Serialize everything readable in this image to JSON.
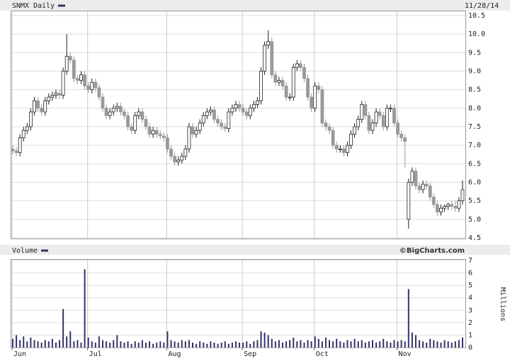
{
  "chart_data": [
    {
      "type": "candlestick",
      "title": "SNMX Daily",
      "date": "11/28/14",
      "up_color": "#ffffff",
      "down_color": "#999999",
      "line_color": "#222222",
      "legend_color": "#333366",
      "open": [
        6.9,
        6.85,
        6.8,
        7.2,
        7.4,
        7.5,
        7.9,
        8.2,
        8.0,
        7.9,
        8.2,
        8.3,
        8.35,
        8.4,
        8.35,
        9.0,
        9.4,
        9.3,
        8.8,
        8.75,
        8.9,
        8.6,
        8.5,
        8.7,
        8.55,
        8.3,
        8.0,
        7.8,
        7.9,
        8.0,
        8.05,
        7.9,
        7.8,
        7.5,
        7.4,
        7.8,
        7.9,
        7.7,
        7.5,
        7.3,
        7.4,
        7.3,
        7.25,
        7.2,
        6.9,
        6.7,
        6.55,
        6.6,
        6.7,
        6.9,
        7.5,
        7.3,
        7.4,
        7.6,
        7.8,
        7.9,
        7.95,
        7.7,
        7.6,
        7.5,
        7.45,
        7.9,
        8.0,
        8.1,
        8.0,
        7.9,
        7.8,
        8.0,
        8.1,
        8.2,
        9.0,
        9.7,
        9.8,
        8.9,
        8.7,
        8.75,
        8.6,
        8.3,
        8.3,
        9.1,
        9.2,
        9.1,
        8.8,
        8.3,
        8.0,
        8.6,
        8.5,
        7.6,
        7.5,
        7.4,
        7.0,
        6.9,
        6.9,
        6.8,
        7.0,
        7.3,
        7.5,
        7.7,
        8.1,
        7.8,
        7.4,
        7.6,
        7.9,
        7.8,
        7.5,
        8.0,
        8.0,
        7.6,
        7.3,
        7.2,
        5.0,
        6.0,
        6.3,
        5.9,
        5.8,
        5.95,
        5.9,
        5.6,
        5.4,
        5.2,
        5.3,
        5.35,
        5.4,
        5.35,
        5.3,
        5.5
      ],
      "high": [
        7.0,
        6.95,
        7.3,
        7.5,
        7.6,
        8.0,
        8.3,
        8.3,
        8.1,
        8.3,
        8.4,
        8.45,
        8.5,
        8.5,
        9.1,
        10.0,
        9.5,
        9.4,
        8.9,
        9.0,
        9.0,
        8.7,
        8.8,
        8.8,
        8.65,
        8.4,
        8.1,
        8.0,
        8.1,
        8.15,
        8.15,
        8.0,
        7.9,
        7.6,
        7.9,
        8.0,
        8.0,
        7.8,
        7.6,
        7.5,
        7.5,
        7.4,
        7.35,
        7.3,
        7.0,
        6.8,
        6.7,
        6.8,
        7.0,
        7.6,
        7.6,
        7.5,
        7.7,
        7.9,
        8.0,
        8.05,
        8.05,
        7.8,
        7.7,
        7.6,
        8.0,
        8.1,
        8.2,
        8.2,
        8.1,
        8.0,
        8.1,
        8.2,
        8.3,
        9.1,
        9.8,
        10.1,
        9.9,
        9.0,
        8.85,
        8.85,
        8.7,
        8.4,
        9.2,
        9.3,
        9.3,
        9.2,
        8.9,
        8.4,
        8.7,
        8.7,
        8.6,
        7.7,
        7.6,
        7.5,
        7.1,
        7.0,
        7.0,
        7.1,
        7.4,
        7.6,
        7.8,
        8.2,
        8.2,
        7.9,
        7.7,
        8.0,
        8.0,
        7.9,
        8.1,
        8.1,
        8.1,
        7.7,
        7.4,
        7.3,
        6.1,
        6.4,
        6.4,
        6.0,
        6.05,
        6.05,
        6.0,
        5.7,
        5.5,
        5.4,
        5.4,
        5.45,
        5.5,
        5.5,
        5.6,
        6.05
      ],
      "low": [
        6.75,
        6.7,
        6.7,
        7.1,
        7.3,
        7.4,
        7.8,
        7.9,
        7.8,
        7.8,
        8.1,
        8.2,
        8.25,
        8.25,
        8.25,
        8.9,
        9.2,
        8.7,
        8.65,
        8.65,
        8.5,
        8.4,
        8.4,
        8.45,
        8.2,
        7.9,
        7.7,
        7.7,
        7.8,
        7.9,
        7.8,
        7.7,
        7.4,
        7.3,
        7.3,
        7.7,
        7.6,
        7.4,
        7.2,
        7.2,
        7.2,
        7.15,
        7.1,
        6.8,
        6.6,
        6.45,
        6.45,
        6.5,
        6.6,
        6.8,
        7.2,
        7.2,
        7.3,
        7.5,
        7.7,
        7.8,
        7.6,
        7.5,
        7.4,
        7.35,
        7.35,
        7.8,
        7.9,
        7.9,
        7.8,
        7.7,
        7.7,
        7.9,
        8.0,
        8.1,
        8.9,
        9.6,
        8.8,
        8.6,
        8.6,
        8.5,
        8.2,
        8.2,
        8.2,
        9.0,
        9.0,
        8.7,
        8.2,
        7.9,
        7.9,
        8.4,
        7.5,
        7.4,
        7.3,
        6.9,
        6.8,
        6.8,
        6.7,
        6.7,
        6.9,
        7.2,
        7.4,
        7.6,
        7.7,
        7.3,
        7.3,
        7.5,
        7.7,
        7.4,
        7.4,
        7.9,
        7.5,
        7.2,
        7.1,
        6.4,
        4.75,
        5.9,
        5.8,
        5.7,
        5.7,
        5.8,
        5.5,
        5.3,
        5.1,
        5.1,
        5.2,
        5.25,
        5.25,
        5.2,
        5.2,
        5.4
      ],
      "close": [
        6.85,
        6.8,
        7.2,
        7.4,
        7.5,
        7.9,
        8.2,
        8.0,
        7.9,
        8.2,
        8.3,
        8.35,
        8.4,
        8.35,
        9.0,
        9.4,
        9.3,
        8.8,
        8.75,
        8.9,
        8.6,
        8.5,
        8.7,
        8.55,
        8.3,
        8.0,
        7.8,
        7.9,
        8.0,
        8.05,
        7.9,
        7.8,
        7.5,
        7.4,
        7.8,
        7.9,
        7.7,
        7.5,
        7.3,
        7.4,
        7.3,
        7.25,
        7.2,
        6.9,
        6.7,
        6.55,
        6.6,
        6.7,
        6.9,
        7.5,
        7.3,
        7.4,
        7.6,
        7.8,
        7.9,
        7.95,
        7.7,
        7.6,
        7.5,
        7.45,
        7.9,
        8.0,
        8.1,
        8.0,
        7.9,
        7.8,
        8.0,
        8.1,
        8.2,
        9.0,
        9.7,
        9.8,
        8.9,
        8.7,
        8.75,
        8.6,
        8.3,
        8.3,
        9.1,
        9.2,
        9.1,
        8.8,
        8.3,
        8.0,
        8.6,
        8.5,
        7.6,
        7.5,
        7.4,
        7.0,
        6.9,
        6.9,
        6.8,
        7.0,
        7.3,
        7.5,
        7.7,
        8.1,
        7.8,
        7.4,
        7.6,
        7.9,
        7.8,
        7.5,
        8.0,
        8.0,
        7.6,
        7.3,
        7.2,
        7.1,
        6.0,
        6.3,
        5.9,
        5.8,
        5.95,
        5.9,
        5.6,
        5.4,
        5.2,
        5.3,
        5.35,
        5.4,
        5.35,
        5.3,
        5.5,
        5.8
      ],
      "ylim": [
        4.5,
        10.5
      ],
      "yticks": [
        4.5,
        {
          "value": 5,
          "label": "5.0"
        },
        5.5,
        {
          "value": 6,
          "label": "6.0"
        },
        6.5,
        {
          "value": 7,
          "label": "7.0"
        },
        7.5,
        {
          "value": 8,
          "label": "8.0"
        },
        8.5,
        {
          "value": 9,
          "label": "9.0"
        },
        9.5,
        {
          "value": 10,
          "label": "10.0"
        },
        10.5
      ],
      "grid": true
    },
    {
      "type": "bar",
      "title": "Volume",
      "source": "©BigCharts.com",
      "y_label": "Millions",
      "color": "#333366",
      "categories": [
        "Jun",
        null,
        null,
        null,
        null,
        null,
        null,
        null,
        null,
        null,
        null,
        null,
        null,
        null,
        null,
        null,
        null,
        null,
        null,
        null,
        null,
        "Jul",
        null,
        null,
        null,
        null,
        null,
        null,
        null,
        null,
        null,
        null,
        null,
        null,
        null,
        null,
        null,
        null,
        null,
        null,
        null,
        null,
        null,
        "Aug",
        null,
        null,
        null,
        null,
        null,
        null,
        null,
        null,
        null,
        null,
        null,
        null,
        null,
        null,
        null,
        null,
        null,
        null,
        null,
        null,
        "Sep",
        null,
        null,
        null,
        null,
        null,
        null,
        null,
        null,
        null,
        null,
        null,
        null,
        null,
        null,
        null,
        null,
        null,
        null,
        null,
        "Oct",
        null,
        null,
        null,
        null,
        null,
        null,
        null,
        null,
        null,
        null,
        null,
        null,
        null,
        null,
        null,
        null,
        null,
        null,
        null,
        null,
        null,
        null,
        "Nov",
        null,
        null,
        null,
        null,
        null,
        null,
        null,
        null,
        null,
        null,
        null,
        null,
        null,
        null,
        null,
        null,
        null,
        null
      ],
      "values": [
        0.7,
        1.0,
        0.6,
        0.9,
        0.5,
        0.8,
        0.6,
        0.5,
        0.4,
        0.6,
        0.5,
        0.7,
        0.4,
        0.6,
        3.1,
        0.9,
        1.3,
        0.5,
        0.6,
        0.4,
        6.3,
        0.8,
        0.5,
        0.4,
        0.9,
        0.6,
        0.5,
        0.4,
        0.6,
        1.0,
        0.5,
        0.4,
        0.5,
        0.3,
        0.5,
        0.4,
        0.6,
        0.4,
        0.5,
        0.3,
        0.4,
        0.5,
        0.4,
        1.3,
        0.6,
        0.5,
        0.4,
        0.6,
        0.5,
        0.6,
        0.4,
        0.3,
        0.5,
        0.4,
        0.3,
        0.5,
        0.4,
        0.3,
        0.4,
        0.5,
        0.3,
        0.4,
        0.5,
        0.4,
        0.4,
        0.5,
        0.3,
        0.5,
        0.6,
        1.3,
        1.2,
        1.0,
        0.7,
        0.5,
        0.6,
        0.4,
        0.5,
        0.6,
        0.8,
        0.5,
        0.6,
        0.4,
        0.6,
        0.5,
        0.9,
        0.7,
        0.5,
        0.8,
        0.6,
        0.5,
        0.7,
        0.5,
        0.4,
        0.6,
        0.5,
        0.7,
        0.5,
        0.6,
        0.4,
        0.5,
        0.6,
        0.4,
        0.5,
        0.7,
        0.5,
        0.4,
        0.6,
        0.5,
        0.6,
        0.5,
        4.7,
        1.2,
        1.0,
        0.6,
        0.5,
        0.4,
        0.7,
        0.6,
        0.5,
        0.4,
        0.6,
        0.5,
        0.4,
        0.5,
        0.6,
        0.8
      ],
      "ylim": [
        0,
        7
      ],
      "yticks": [
        0,
        1,
        2,
        3,
        4,
        5,
        6,
        7
      ],
      "grid": true
    }
  ]
}
